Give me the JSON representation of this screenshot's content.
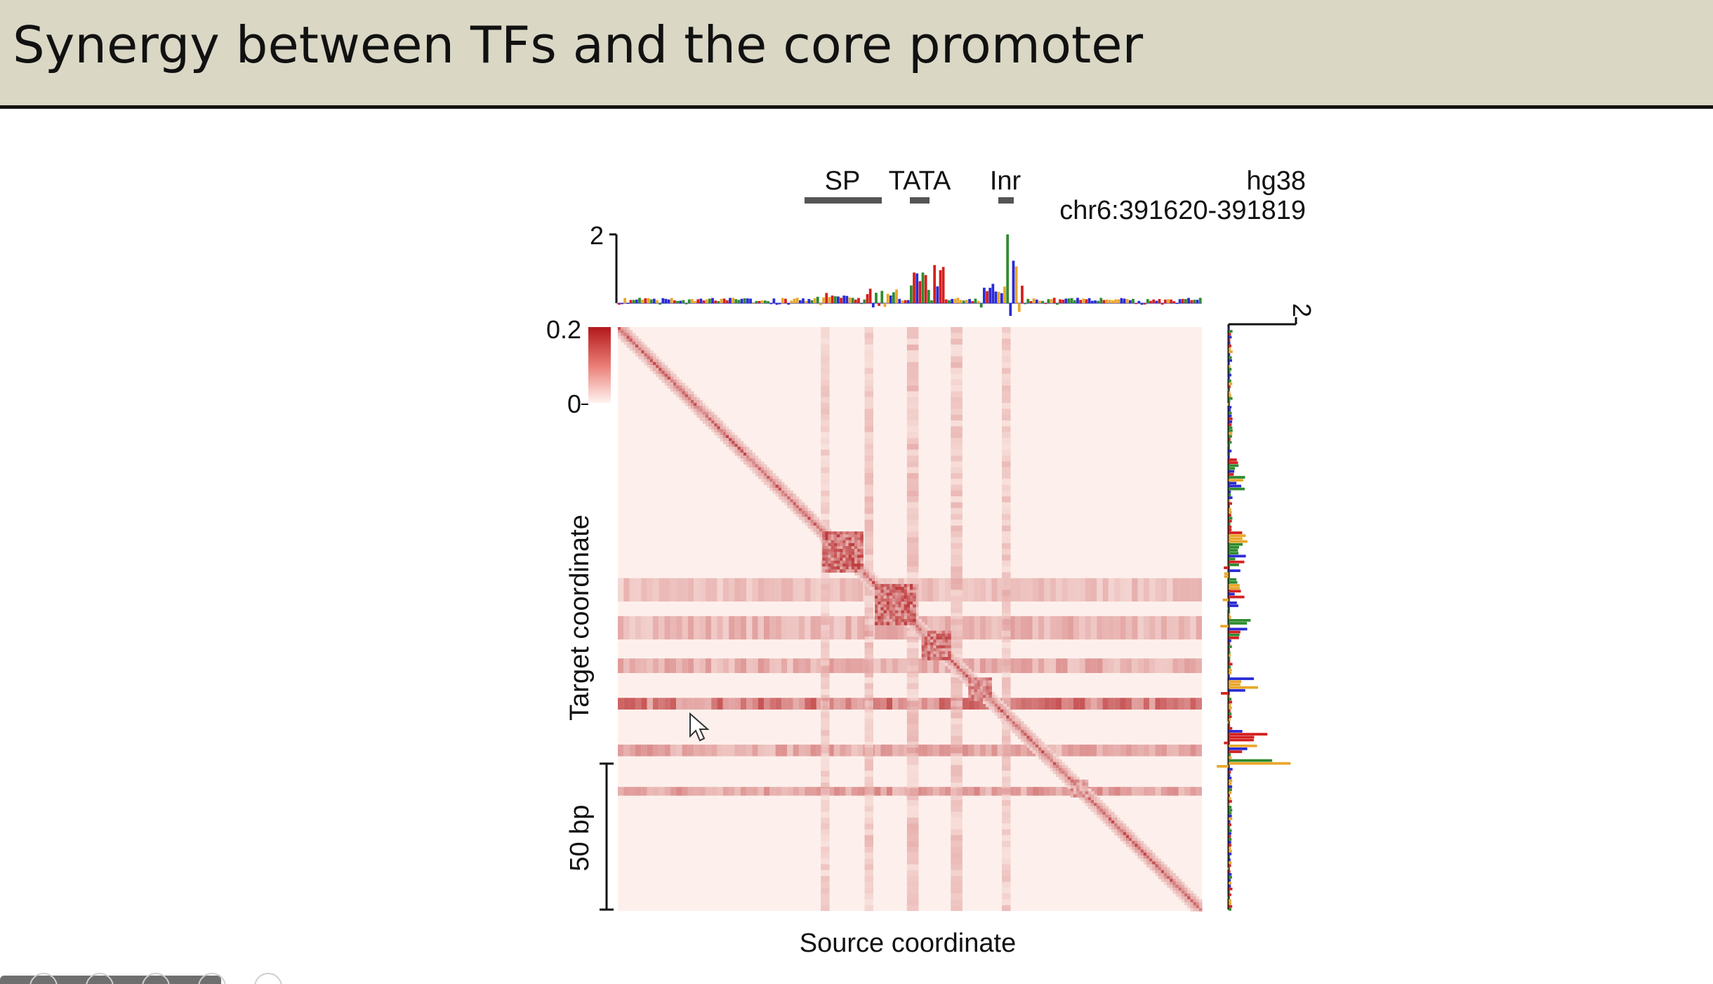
{
  "slide": {
    "title": "Synergy between TFs and the core promoter"
  },
  "figure": {
    "motifs": [
      {
        "label": "SP"
      },
      {
        "label": "TATA"
      },
      {
        "label": "Inr"
      }
    ],
    "genome": "hg38",
    "region": "chr6:391620-391819",
    "top_track_max": "2",
    "right_track_max": "2",
    "colorbar_max": "0.2",
    "colorbar_min": "0",
    "y_axis_label": "Target coordinate",
    "scale_bar_label": "50 bp",
    "x_axis_label": "Source coordinate",
    "colors": {
      "heat_high": "#b2181b",
      "heat_low": "#fdf0ec",
      "track_blue": "#2b2bd6",
      "track_green": "#2e8b2e",
      "track_red": "#d42020",
      "track_orange": "#e8a72a",
      "motif_bar": "#555555"
    }
  },
  "toolbar": {
    "icons": [
      "toolbar-button-icon",
      "toolbar-button-icon",
      "toolbar-button-icon",
      "toolbar-button-icon",
      "toolbar-button-icon"
    ]
  }
}
